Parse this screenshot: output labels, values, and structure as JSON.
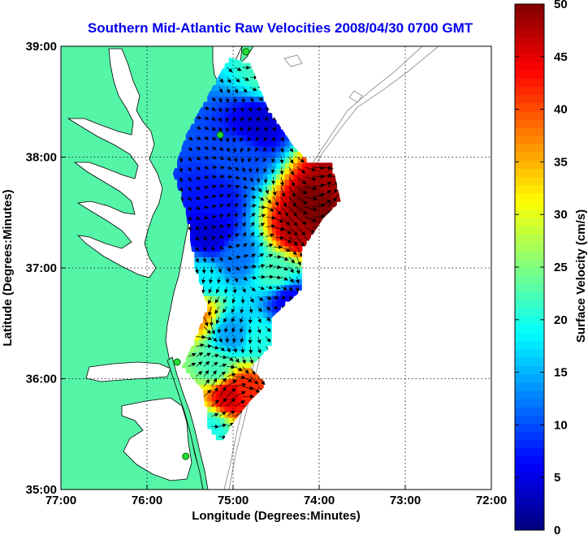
{
  "chart_data": {
    "type": "heatmap",
    "title": "Southern Mid-Atlantic Raw Velocities 2008/04/30 0700 GMT",
    "xlabel": "Longitude (Degrees:Minutes)",
    "ylabel": "Latitude (Degrees:Minutes)",
    "xlim": [
      -77,
      -72
    ],
    "ylim": [
      35,
      39
    ],
    "x_ticks": [
      {
        "value": -77,
        "label": "77:00"
      },
      {
        "value": -76,
        "label": "76:00"
      },
      {
        "value": -75,
        "label": "75:00"
      },
      {
        "value": -74,
        "label": "74:00"
      },
      {
        "value": -73,
        "label": "73:00"
      },
      {
        "value": -72,
        "label": "72:00"
      }
    ],
    "y_ticks": [
      {
        "value": 35,
        "label": "35:00"
      },
      {
        "value": 36,
        "label": "36:00"
      },
      {
        "value": 37,
        "label": "37:00"
      },
      {
        "value": 38,
        "label": "38:00"
      },
      {
        "value": 39,
        "label": "39:00"
      }
    ],
    "grid": true,
    "colorbar": {
      "label": "Surface Velocity (cm/s)",
      "min": 0,
      "max": 50,
      "ticks": [
        0,
        5,
        10,
        15,
        20,
        25,
        30,
        35,
        40,
        45,
        50
      ],
      "colormap": "jet"
    },
    "land_color": "#55f5a8",
    "water_color": "#ffffff",
    "coverage_polygon": [
      [
        -75.3,
        36.65
      ],
      [
        -75.45,
        37.0
      ],
      [
        -75.55,
        37.5
      ],
      [
        -75.7,
        37.85
      ],
      [
        -75.55,
        38.2
      ],
      [
        -75.05,
        38.9
      ],
      [
        -74.8,
        38.85
      ],
      [
        -74.6,
        38.45
      ],
      [
        -74.3,
        38.1
      ],
      [
        -74.1,
        37.95
      ],
      [
        -73.85,
        37.95
      ],
      [
        -73.75,
        37.6
      ],
      [
        -73.95,
        37.45
      ],
      [
        -74.2,
        37.15
      ],
      [
        -74.2,
        36.8
      ],
      [
        -74.55,
        36.55
      ],
      [
        -74.55,
        36.3
      ],
      [
        -74.8,
        36.1
      ],
      [
        -74.6,
        35.95
      ],
      [
        -74.8,
        35.8
      ],
      [
        -75.0,
        35.6
      ],
      [
        -75.15,
        35.4
      ],
      [
        -75.3,
        35.55
      ],
      [
        -75.35,
        35.9
      ],
      [
        -75.6,
        36.1
      ],
      [
        -75.45,
        36.35
      ]
    ],
    "velocity_features": [
      {
        "lon": -74.7,
        "lat": 38.3,
        "speed": 4
      },
      {
        "lon": -74.9,
        "lat": 38.0,
        "speed": 10
      },
      {
        "lon": -75.2,
        "lat": 37.6,
        "speed": 7
      },
      {
        "lon": -75.25,
        "lat": 37.3,
        "speed": 4
      },
      {
        "lon": -74.95,
        "lat": 37.1,
        "speed": 12
      },
      {
        "lon": -74.5,
        "lat": 36.95,
        "speed": 22
      },
      {
        "lon": -74.25,
        "lat": 37.35,
        "speed": 48
      },
      {
        "lon": -74.05,
        "lat": 37.55,
        "speed": 52
      },
      {
        "lon": -73.85,
        "lat": 37.75,
        "speed": 48
      },
      {
        "lon": -74.35,
        "lat": 36.7,
        "speed": 6
      },
      {
        "lon": -75.45,
        "lat": 36.6,
        "speed": 38
      },
      {
        "lon": -75.0,
        "lat": 36.4,
        "speed": 14
      },
      {
        "lon": -74.7,
        "lat": 36.35,
        "speed": 20
      },
      {
        "lon": -75.2,
        "lat": 36.1,
        "speed": 22
      },
      {
        "lon": -75.05,
        "lat": 35.85,
        "speed": 46
      },
      {
        "lon": -74.85,
        "lat": 35.9,
        "speed": 42
      },
      {
        "lon": -75.25,
        "lat": 35.55,
        "speed": 20
      },
      {
        "lon": -75.35,
        "lat": 36.9,
        "speed": 18
      },
      {
        "lon": -74.6,
        "lat": 38.75,
        "speed": 22
      }
    ],
    "hf_radar_sites": [
      [
        -74.85,
        38.95
      ],
      [
        -75.15,
        38.2
      ],
      [
        -75.65,
        36.15
      ],
      [
        -75.55,
        35.3
      ]
    ]
  }
}
